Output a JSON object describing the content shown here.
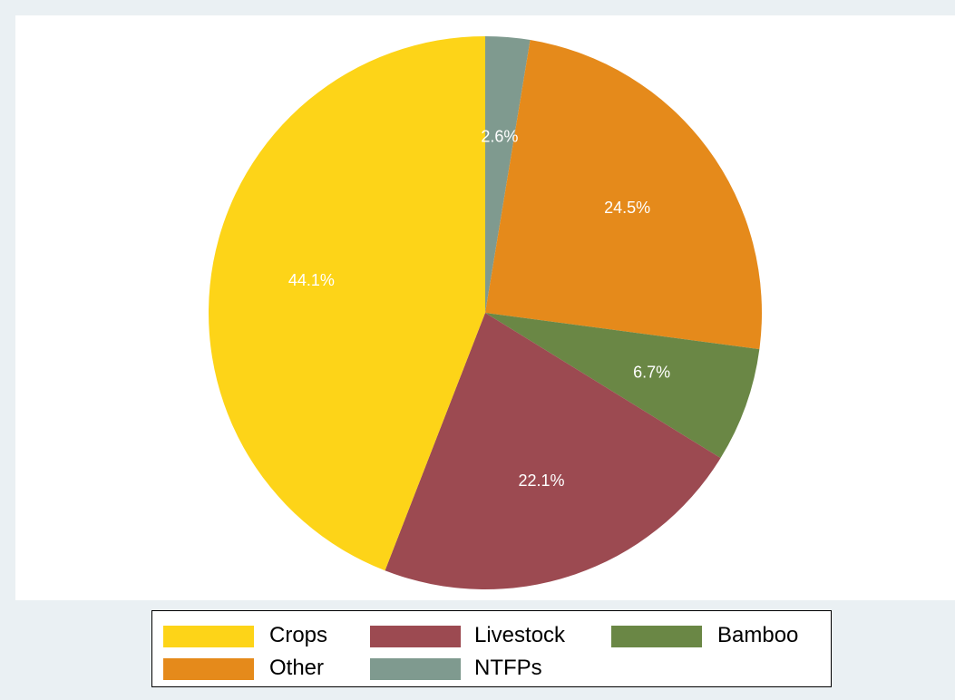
{
  "chart_data": {
    "type": "pie",
    "title": "",
    "slices": [
      {
        "label": "NTFPs",
        "value": 2.6,
        "display": "2.6%",
        "color": "#7f9a8f"
      },
      {
        "label": "Other",
        "value": 24.5,
        "display": "24.5%",
        "color": "#e58a1b"
      },
      {
        "label": "Bamboo",
        "value": 6.7,
        "display": "6.7%",
        "color": "#6a8745"
      },
      {
        "label": "Livestock",
        "value": 22.1,
        "display": "22.1%",
        "color": "#9c4a51"
      },
      {
        "label": "Crops",
        "value": 44.1,
        "display": "44.1%",
        "color": "#fdd418"
      }
    ],
    "start_angle": "12 o'clock",
    "direction": "clockwise",
    "label_color": "#ffffff",
    "legend": {
      "placement": "bottom",
      "rows": [
        [
          "Crops",
          "Livestock",
          "Bamboo"
        ],
        [
          "Other",
          "NTFPs"
        ]
      ]
    }
  }
}
